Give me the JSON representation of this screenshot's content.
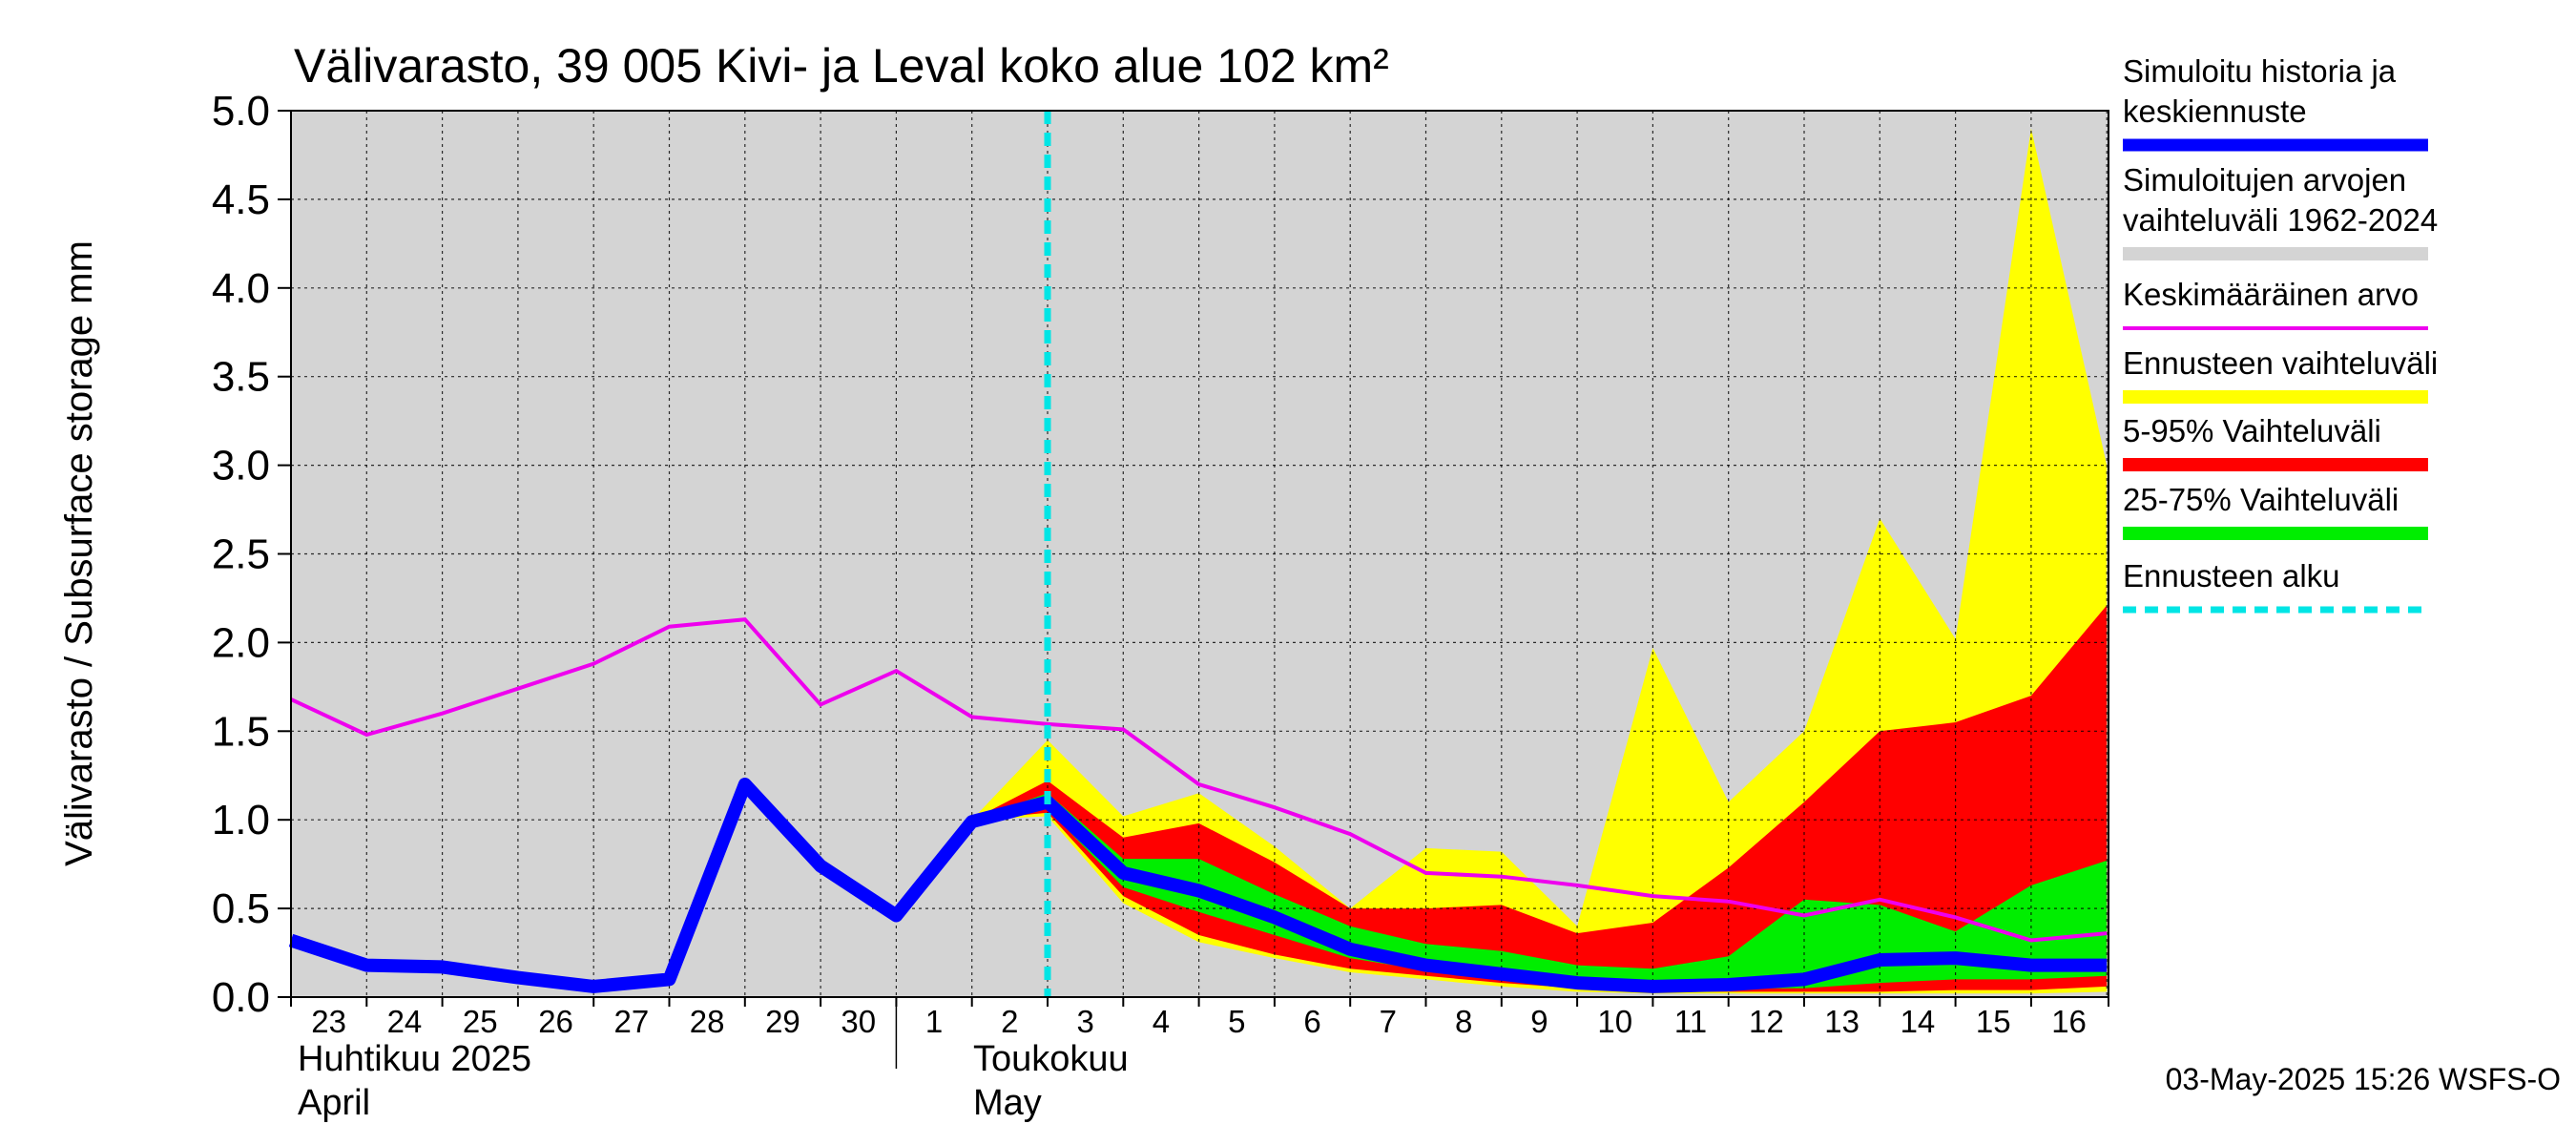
{
  "chart_data": {
    "type": "area",
    "title": "Välivarasto, 39 005 Kivi- ja Leval koko alue 102 km²",
    "ylabel": "Välivarasto / Subsurface storage  mm",
    "ylim": [
      0,
      5.0
    ],
    "yticks": [
      "0.0",
      "0.5",
      "1.0",
      "1.5",
      "2.0",
      "2.5",
      "3.0",
      "3.5",
      "4.0",
      "4.5",
      "5.0"
    ],
    "x_day_labels": [
      "23",
      "24",
      "25",
      "26",
      "27",
      "28",
      "29",
      "30",
      "1",
      "2",
      "3",
      "4",
      "5",
      "6",
      "7",
      "8",
      "9",
      "10",
      "11",
      "12",
      "13",
      "14",
      "15",
      "16"
    ],
    "month_labels": [
      {
        "line1": "Huhtikuu  2025",
        "line2": "April"
      },
      {
        "line1": "Toukokuu",
        "line2": "May"
      }
    ],
    "forecast_start": "3",
    "grid": true,
    "colors": {
      "plot_bg": "#d4d4d4",
      "history": "#0000ff",
      "hist_range": "#d4d4d4",
      "mean": "#ee00ee",
      "forecast_range": "#ffff00",
      "p5_95": "#ff0000",
      "p25_75": "#00ee00",
      "forecast_start": "#00e5e5"
    },
    "series": {
      "history": {
        "x": [
          "Apr 23",
          "Apr 24",
          "Apr 25",
          "Apr 26",
          "Apr 27",
          "Apr 28",
          "Apr 29",
          "Apr 30",
          "May 1",
          "May 2",
          "May 3",
          "May 4",
          "May 5",
          "May 6",
          "May 7",
          "May 8",
          "May 9",
          "May 10",
          "May 11",
          "May 12",
          "May 13",
          "May 14",
          "May 15",
          "May 16",
          "May 17"
        ],
        "values": [
          0.32,
          0.18,
          0.17,
          0.11,
          0.06,
          0.1,
          1.2,
          0.74,
          0.46,
          0.99,
          1.1,
          0.7,
          0.6,
          0.45,
          0.27,
          0.18,
          0.13,
          0.08,
          0.06,
          0.07,
          0.1,
          0.21,
          0.22,
          0.18,
          0.18
        ]
      },
      "mean": {
        "x": [
          "Apr 23",
          "Apr 24",
          "Apr 25",
          "Apr 26",
          "Apr 27",
          "Apr 28",
          "Apr 29",
          "Apr 30",
          "May 1",
          "May 2",
          "May 3",
          "May 4",
          "May 5",
          "May 6",
          "May 7",
          "May 8",
          "May 9",
          "May 10",
          "May 11",
          "May 12",
          "May 13",
          "May 14",
          "May 15",
          "May 16",
          "May 17"
        ],
        "values": [
          1.68,
          1.48,
          1.6,
          1.74,
          1.88,
          2.09,
          2.13,
          1.65,
          1.84,
          1.58,
          1.54,
          1.51,
          1.2,
          1.07,
          0.92,
          0.7,
          0.68,
          0.63,
          0.57,
          0.54,
          0.46,
          0.55,
          0.45,
          0.32,
          0.36
        ]
      },
      "forecast_range": {
        "x": [
          "May 2",
          "May 3",
          "May 4",
          "May 5",
          "May 6",
          "May 7",
          "May 8",
          "May 9",
          "May 10",
          "May 11",
          "May 12",
          "May 13",
          "May 14",
          "May 15",
          "May 16",
          "May 17"
        ],
        "lower": [
          1.0,
          1.02,
          0.53,
          0.31,
          0.22,
          0.14,
          0.1,
          0.06,
          0.03,
          0.02,
          0.02,
          0.02,
          0.02,
          0.02,
          0.02,
          0.03
        ],
        "upper": [
          1.0,
          1.45,
          1.02,
          1.15,
          0.85,
          0.5,
          0.84,
          0.82,
          0.4,
          1.97,
          1.1,
          1.5,
          2.7,
          2.02,
          4.9,
          3.0
        ]
      },
      "p5_95": {
        "x": [
          "May 2",
          "May 3",
          "May 4",
          "May 5",
          "May 6",
          "May 7",
          "May 8",
          "May 9",
          "May 10",
          "May 11",
          "May 12",
          "May 13",
          "May 14",
          "May 15",
          "May 16",
          "May 17"
        ],
        "lower": [
          1.0,
          1.04,
          0.57,
          0.35,
          0.24,
          0.16,
          0.12,
          0.08,
          0.05,
          0.03,
          0.03,
          0.03,
          0.03,
          0.04,
          0.04,
          0.06
        ],
        "upper": [
          1.0,
          1.22,
          0.9,
          0.98,
          0.76,
          0.5,
          0.5,
          0.52,
          0.36,
          0.42,
          0.73,
          1.1,
          1.5,
          1.55,
          1.7,
          2.21
        ]
      },
      "p25_75": {
        "x": [
          "May 2",
          "May 3",
          "May 4",
          "May 5",
          "May 6",
          "May 7",
          "May 8",
          "May 9",
          "May 10",
          "May 11",
          "May 12",
          "May 13",
          "May 14",
          "May 15",
          "May 16",
          "May 17"
        ],
        "lower": [
          1.0,
          1.06,
          0.62,
          0.48,
          0.35,
          0.22,
          0.15,
          0.12,
          0.08,
          0.05,
          0.05,
          0.05,
          0.08,
          0.1,
          0.1,
          0.12
        ],
        "upper": [
          1.0,
          1.15,
          0.78,
          0.78,
          0.58,
          0.4,
          0.3,
          0.26,
          0.18,
          0.16,
          0.23,
          0.55,
          0.52,
          0.37,
          0.63,
          0.77
        ]
      }
    },
    "legend": {
      "placement": "right",
      "entries": [
        {
          "lines": [
            "Simuloitu historia ja",
            "keskiennuste"
          ],
          "key": "history"
        },
        {
          "lines": [
            "Simuloitujen arvojen",
            "vaihteluväli 1962-2024"
          ],
          "key": "hist_range"
        },
        {
          "lines": [
            "Keskimääräinen arvo"
          ],
          "key": "mean"
        },
        {
          "lines": [
            "Ennusteen vaihteluväli"
          ],
          "key": "forecast_range"
        },
        {
          "lines": [
            "5-95% Vaihteluväli"
          ],
          "key": "p5_95"
        },
        {
          "lines": [
            "25-75% Vaihteluväli"
          ],
          "key": "p25_75"
        },
        {
          "lines": [
            "Ennusteen alku"
          ],
          "key": "forecast_start"
        }
      ]
    },
    "footer": "03-May-2025 15:26 WSFS-O"
  }
}
